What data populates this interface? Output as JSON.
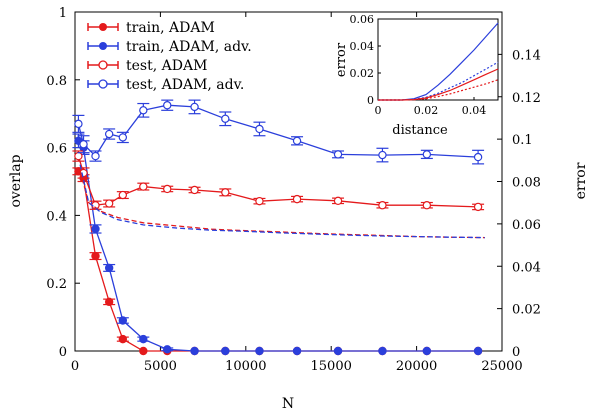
{
  "chart_data": {
    "type": "line",
    "xlabel": "N",
    "ylabel": "overlap",
    "y2label": "error",
    "xlim": [
      0,
      25000
    ],
    "ylim": [
      0,
      1
    ],
    "y2lim": [
      0,
      0.16
    ],
    "xticks": [
      "0",
      "5000",
      "10000",
      "15000",
      "20000",
      "25000"
    ],
    "yticks": [
      "0",
      "0.2",
      "0.4",
      "0.6",
      "0.8",
      "1"
    ],
    "y2ticks": [
      "0",
      "0.02",
      "0.04",
      "0.06",
      "0.08",
      "0.1",
      "0.12",
      "0.14"
    ],
    "legend_position": "top-left",
    "colors": {
      "red": "#e41a1c",
      "blue": "#2b3fdb"
    },
    "series": [
      {
        "name": "train, ADAM",
        "color": "#e41a1c",
        "marker": "filled-circle",
        "axis": "left",
        "x": [
          200,
          500,
          1200,
          2000,
          2800,
          4000,
          5400,
          7000,
          8800,
          10800,
          13000,
          15400,
          18000,
          20600,
          23600
        ],
        "y": [
          0.53,
          0.51,
          0.28,
          0.145,
          0.035,
          0.0,
          0.0,
          0.0,
          0.0,
          0.0,
          0.0,
          0.0,
          0.0,
          0.0,
          0.0
        ],
        "err": [
          0.01,
          0.01,
          0.01,
          0.008,
          0.006,
          0,
          0,
          0,
          0,
          0,
          0,
          0,
          0,
          0,
          0
        ]
      },
      {
        "name": "train, ADAM, adv.",
        "color": "#2b3fdb",
        "marker": "filled-circle",
        "axis": "left",
        "x": [
          200,
          500,
          1200,
          2000,
          2800,
          4000,
          5400,
          7000,
          8800,
          10800,
          13000,
          15400,
          18000,
          20600,
          23600
        ],
        "y": [
          0.62,
          0.6,
          0.36,
          0.245,
          0.09,
          0.035,
          0.005,
          0.0,
          0.0,
          0.0,
          0.0,
          0.0,
          0.0,
          0.0,
          0.0
        ],
        "err": [
          0.02,
          0.02,
          0.012,
          0.01,
          0.008,
          0.006,
          0.004,
          0,
          0,
          0,
          0,
          0,
          0,
          0,
          0
        ]
      },
      {
        "name": "test, ADAM",
        "color": "#e41a1c",
        "marker": "open-circle",
        "axis": "left",
        "x": [
          200,
          500,
          1200,
          2000,
          2800,
          4000,
          5400,
          7000,
          8800,
          10800,
          13000,
          15400,
          18000,
          20600,
          23600
        ],
        "y": [
          0.575,
          0.525,
          0.43,
          0.435,
          0.46,
          0.485,
          0.478,
          0.475,
          0.468,
          0.442,
          0.448,
          0.443,
          0.43,
          0.43,
          0.425
        ],
        "err": [
          0.015,
          0.015,
          0.012,
          0.01,
          0.01,
          0.01,
          0.008,
          0.008,
          0.01,
          0.008,
          0.008,
          0.008,
          0.008,
          0.008,
          0.008
        ]
      },
      {
        "name": "test, ADAM, adv.",
        "color": "#2b3fdb",
        "marker": "open-circle",
        "axis": "left",
        "x": [
          200,
          500,
          1200,
          2000,
          2800,
          4000,
          5400,
          7000,
          8800,
          10800,
          13000,
          15400,
          18000,
          20600,
          23600
        ],
        "y": [
          0.67,
          0.61,
          0.575,
          0.64,
          0.63,
          0.71,
          0.725,
          0.72,
          0.685,
          0.655,
          0.62,
          0.58,
          0.578,
          0.58,
          0.572
        ],
        "err": [
          0.025,
          0.025,
          0.015,
          0.015,
          0.015,
          0.02,
          0.015,
          0.02,
          0.02,
          0.02,
          0.012,
          0.01,
          0.02,
          0.012,
          0.02
        ]
      },
      {
        "name": "",
        "color": "#e41a1c",
        "style": "dashed",
        "axis": "right",
        "x": [
          300,
          800,
          1500,
          2500,
          4000,
          6000,
          8000,
          10000,
          12000,
          14000,
          16000,
          18000,
          20000,
          22000,
          24000
        ],
        "y": [
          0.085,
          0.07,
          0.066,
          0.063,
          0.0605,
          0.059,
          0.0575,
          0.0568,
          0.0562,
          0.0555,
          0.055,
          0.0545,
          0.054,
          0.0537,
          0.0535
        ]
      },
      {
        "name": "",
        "color": "#2b3fdb",
        "style": "dashed",
        "axis": "right",
        "x": [
          300,
          800,
          1500,
          2500,
          4000,
          6000,
          8000,
          10000,
          12000,
          14000,
          16000,
          18000,
          20000,
          22000,
          24000
        ],
        "y": [
          0.088,
          0.07,
          0.0655,
          0.062,
          0.0595,
          0.058,
          0.057,
          0.0565,
          0.0558,
          0.0552,
          0.0547,
          0.0543,
          0.054,
          0.0537,
          0.0535
        ]
      }
    ],
    "inset": {
      "xlabel": "distance",
      "ylabel": "error",
      "xlim": [
        0,
        0.05
      ],
      "ylim": [
        0,
        0.06
      ],
      "xticks": [
        "0",
        "0.02",
        "0.04"
      ],
      "yticks": [
        "0",
        "0.02",
        "0.04",
        "0.06"
      ],
      "series": [
        {
          "name": "",
          "color": "#2b3fdb",
          "style": "solid",
          "x": [
            0,
            0.01,
            0.015,
            0.02,
            0.025,
            0.03,
            0.035,
            0.04,
            0.045,
            0.05
          ],
          "y": [
            0,
            0,
            0.001,
            0.004,
            0.011,
            0.019,
            0.028,
            0.037,
            0.047,
            0.057
          ]
        },
        {
          "name": "",
          "color": "#2b3fdb",
          "style": "dotted",
          "x": [
            0,
            0.01,
            0.015,
            0.02,
            0.025,
            0.03,
            0.035,
            0.04,
            0.045,
            0.05
          ],
          "y": [
            0,
            0,
            0.0005,
            0.002,
            0.005,
            0.009,
            0.013,
            0.018,
            0.023,
            0.028
          ]
        },
        {
          "name": "",
          "color": "#e41a1c",
          "style": "solid",
          "x": [
            0,
            0.01,
            0.015,
            0.02,
            0.025,
            0.03,
            0.035,
            0.04,
            0.045,
            0.05
          ],
          "y": [
            0,
            0,
            0.0003,
            0.0015,
            0.004,
            0.007,
            0.011,
            0.015,
            0.019,
            0.023
          ]
        },
        {
          "name": "",
          "color": "#e41a1c",
          "style": "dotted",
          "x": [
            0,
            0.01,
            0.015,
            0.02,
            0.025,
            0.03,
            0.035,
            0.04,
            0.045,
            0.05
          ],
          "y": [
            0,
            0,
            0.0002,
            0.001,
            0.0025,
            0.0045,
            0.007,
            0.0095,
            0.012,
            0.015
          ]
        }
      ]
    }
  }
}
